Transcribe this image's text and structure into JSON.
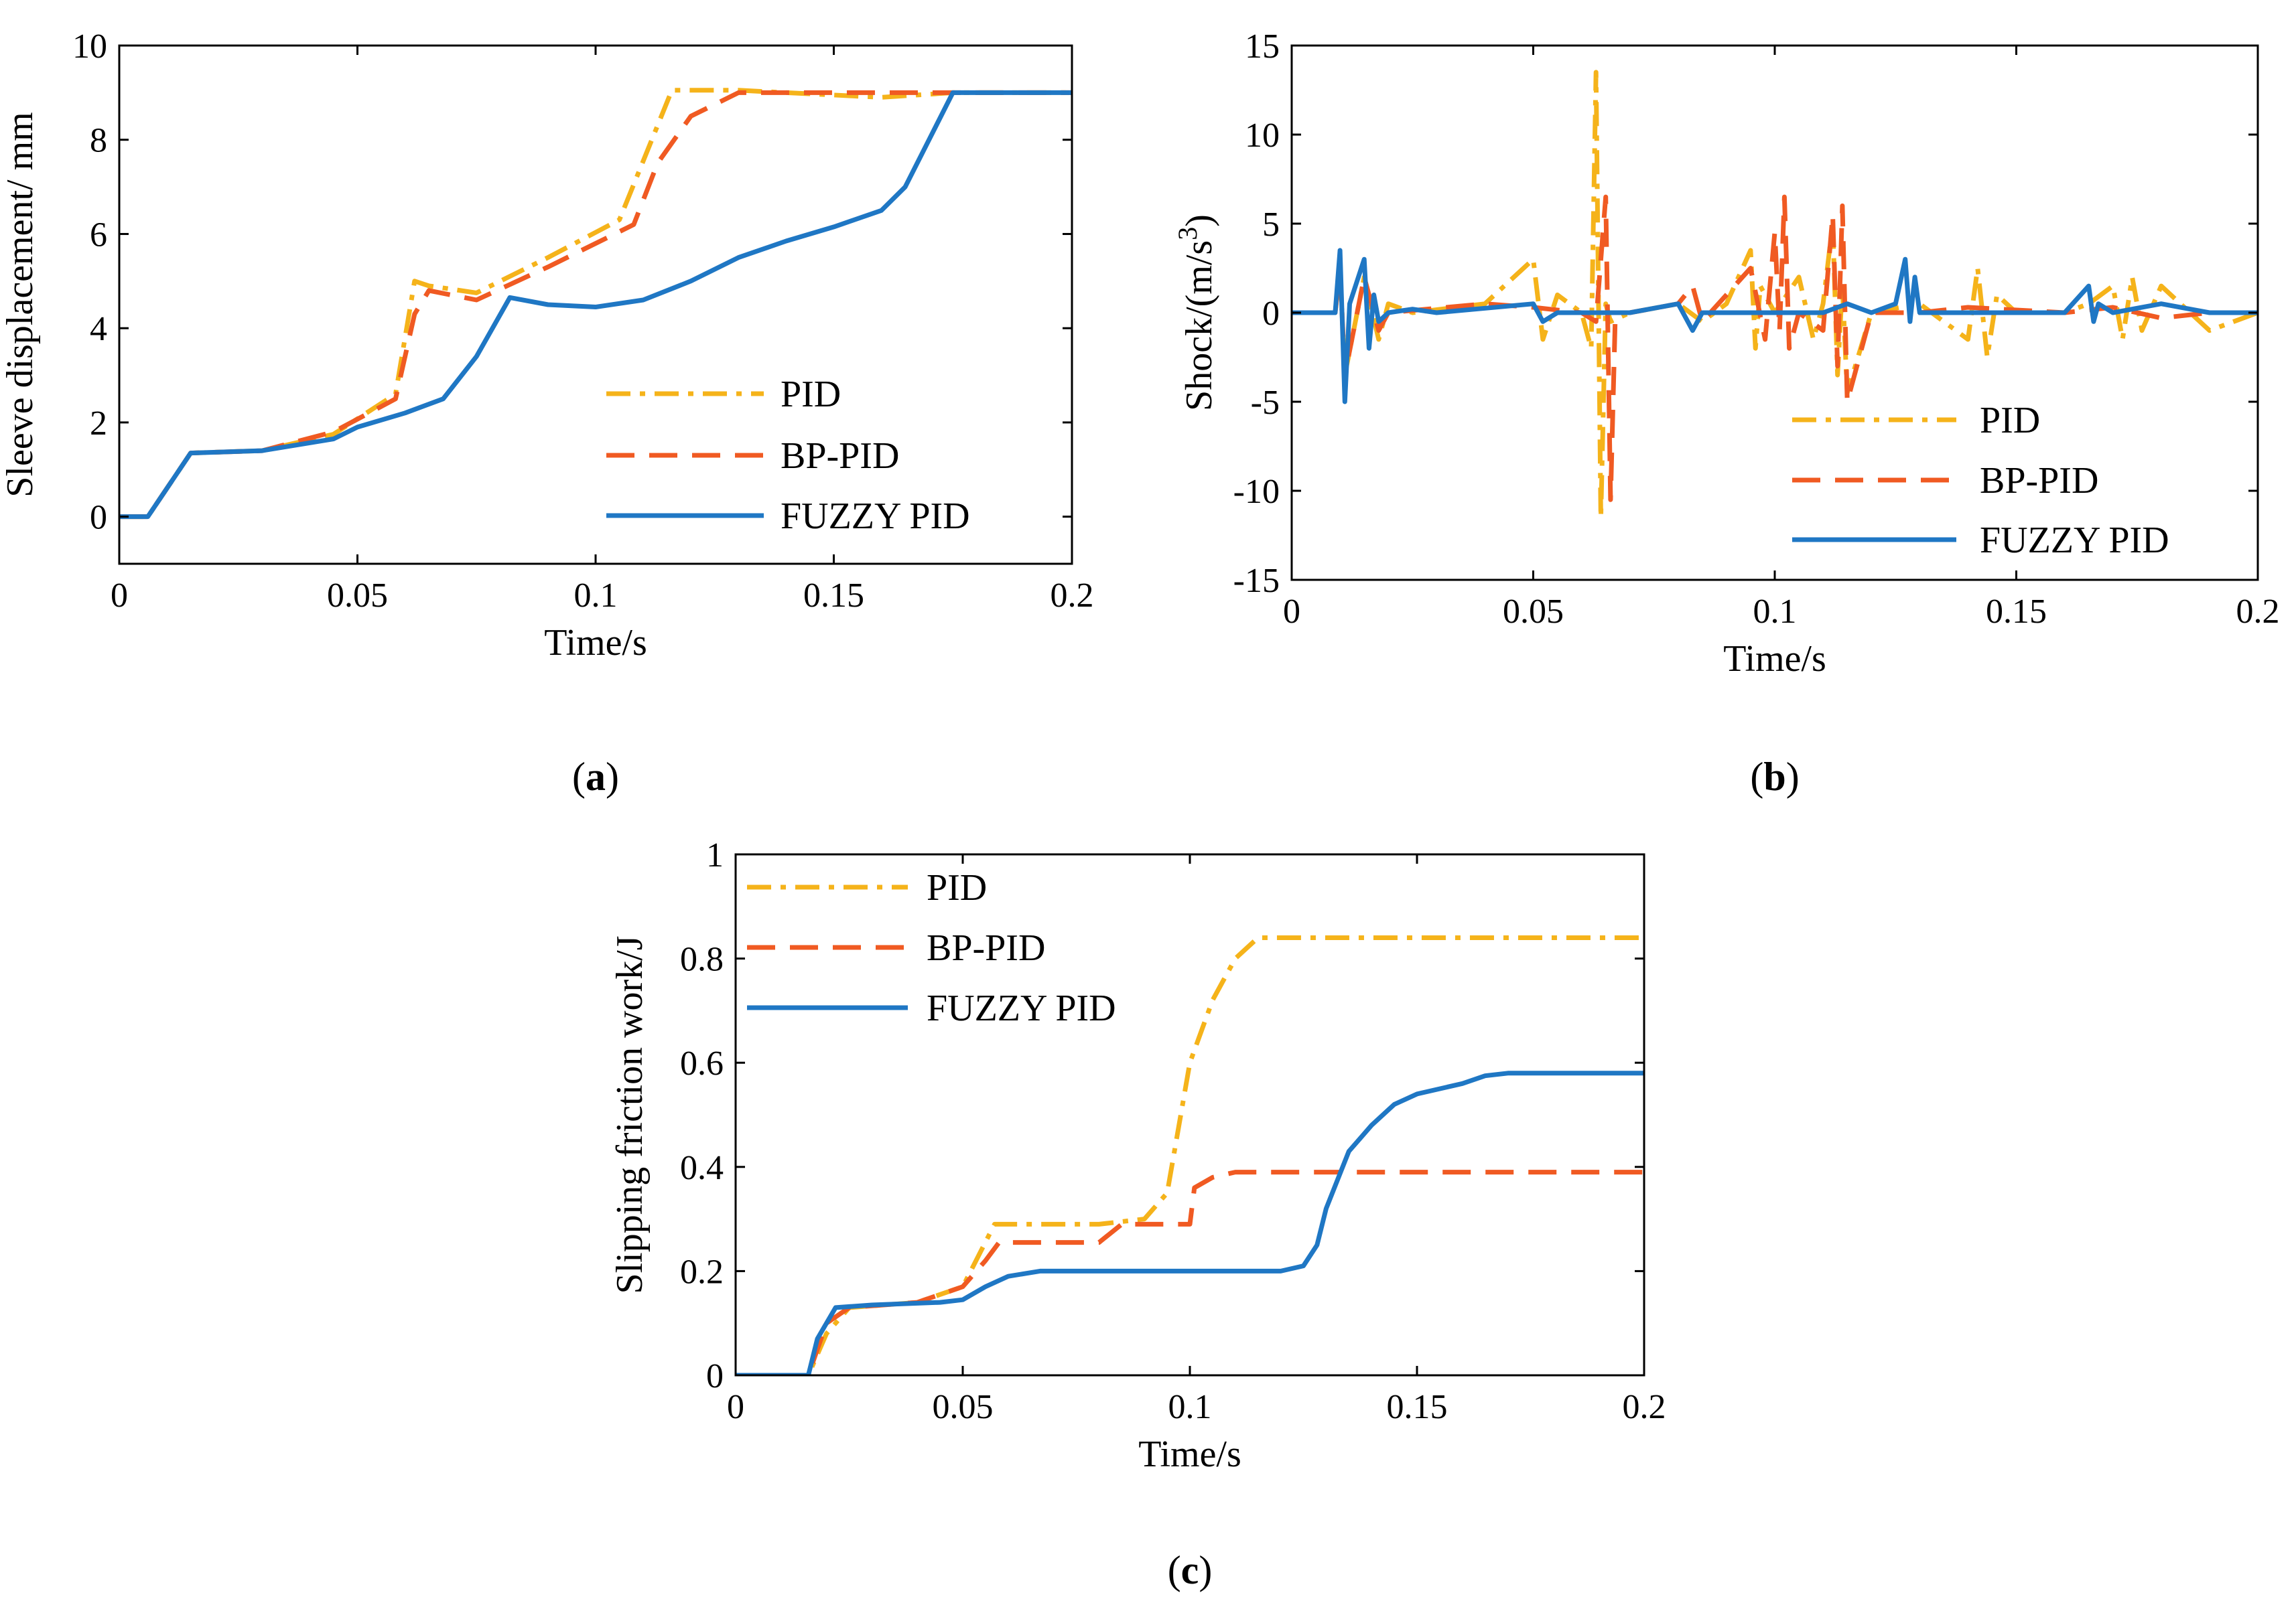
{
  "colors": {
    "PID": "#f5b31a",
    "BP-PID": "#f05a22",
    "FUZZY PID": "#1f77c4"
  },
  "chart_data": [
    {
      "type": "line",
      "panel_label": "a",
      "title": "",
      "xlabel": "Time/s",
      "ylabel": "Sleeve displacement/ mm",
      "xlim": [
        0,
        0.2
      ],
      "ylim": [
        -1,
        10
      ],
      "xticks": [
        0,
        0.05,
        0.1,
        0.15,
        0.2
      ],
      "yticks": [
        0,
        2,
        4,
        6,
        8,
        10
      ],
      "legend_position": "bottom-right",
      "series": [
        {
          "name": "PID",
          "style": "dashdot",
          "color": "#f5b31a",
          "x": [
            0,
            0.006,
            0.015,
            0.03,
            0.045,
            0.058,
            0.062,
            0.065,
            0.075,
            0.09,
            0.105,
            0.111,
            0.116,
            0.13,
            0.14,
            0.16,
            0.175,
            0.2
          ],
          "y": [
            0,
            0,
            1.35,
            1.4,
            1.75,
            2.6,
            5.0,
            4.9,
            4.75,
            5.5,
            6.3,
            7.8,
            9.05,
            9.05,
            9.0,
            8.9,
            9.0,
            9.0
          ]
        },
        {
          "name": "BP-PID",
          "style": "dashed",
          "color": "#f05a22",
          "x": [
            0,
            0.006,
            0.015,
            0.03,
            0.045,
            0.058,
            0.062,
            0.065,
            0.075,
            0.09,
            0.108,
            0.113,
            0.12,
            0.13,
            0.15,
            0.175,
            0.2
          ],
          "y": [
            0,
            0,
            1.35,
            1.4,
            1.8,
            2.5,
            4.3,
            4.8,
            4.6,
            5.3,
            6.2,
            7.5,
            8.5,
            9.0,
            9.0,
            9.0,
            9.0
          ]
        },
        {
          "name": "FUZZY PID",
          "style": "solid",
          "color": "#1f77c4",
          "x": [
            0,
            0.006,
            0.015,
            0.03,
            0.045,
            0.05,
            0.06,
            0.068,
            0.075,
            0.082,
            0.09,
            0.1,
            0.11,
            0.12,
            0.13,
            0.14,
            0.15,
            0.16,
            0.165,
            0.17,
            0.175,
            0.2
          ],
          "y": [
            0,
            0,
            1.35,
            1.4,
            1.65,
            1.9,
            2.2,
            2.5,
            3.4,
            4.65,
            4.5,
            4.45,
            4.6,
            5.0,
            5.5,
            5.85,
            6.15,
            6.5,
            7.0,
            8.0,
            9.0,
            9.0
          ]
        }
      ]
    },
    {
      "type": "line",
      "panel_label": "b",
      "title": "",
      "xlabel": "Time/s",
      "ylabel_main": "Shock/(m/s",
      "ylabel_sup": "3",
      "ylabel_end": ")",
      "xlim": [
        0,
        0.2
      ],
      "ylim": [
        -15,
        15
      ],
      "xticks": [
        0,
        0.05,
        0.1,
        0.15,
        0.2
      ],
      "yticks": [
        -15,
        -10,
        -5,
        0,
        5,
        10,
        15
      ],
      "legend_position": "bottom-right",
      "series": [
        {
          "name": "PID",
          "style": "dashdot",
          "color": "#f5b31a",
          "x": [
            0,
            0.009,
            0.01,
            0.011,
            0.015,
            0.018,
            0.02,
            0.025,
            0.04,
            0.05,
            0.052,
            0.055,
            0.06,
            0.062,
            0.063,
            0.064,
            0.065,
            0.066,
            0.07,
            0.08,
            0.085,
            0.09,
            0.095,
            0.096,
            0.097,
            0.1,
            0.105,
            0.108,
            0.11,
            0.112,
            0.113,
            0.114,
            0.115,
            0.12,
            0.13,
            0.14,
            0.142,
            0.144,
            0.146,
            0.15,
            0.16,
            0.165,
            0.17,
            0.172,
            0.174,
            0.176,
            0.18,
            0.19,
            0.2
          ],
          "y": [
            0,
            0,
            2.5,
            -3.5,
            2.0,
            -1.5,
            0.5,
            0,
            0.5,
            3.0,
            -1.5,
            1.0,
            0,
            -2.0,
            13.5,
            -11.5,
            0.5,
            -0.5,
            0,
            0.5,
            -0.5,
            0.5,
            3.5,
            -2.0,
            1.5,
            0,
            2.0,
            -1.5,
            0.5,
            5.0,
            -3.5,
            1.5,
            -4.5,
            0,
            0.5,
            -1.5,
            2.5,
            -2.5,
            1.0,
            0,
            0,
            0.5,
            1.5,
            -1.5,
            2.0,
            -1.0,
            1.5,
            -1.0,
            0
          ]
        },
        {
          "name": "BP-PID",
          "style": "dashed",
          "color": "#f05a22",
          "x": [
            0,
            0.009,
            0.01,
            0.011,
            0.015,
            0.018,
            0.02,
            0.04,
            0.05,
            0.06,
            0.063,
            0.065,
            0.066,
            0.067,
            0.07,
            0.08,
            0.083,
            0.085,
            0.095,
            0.098,
            0.1,
            0.101,
            0.102,
            0.103,
            0.105,
            0.11,
            0.112,
            0.113,
            0.114,
            0.115,
            0.12,
            0.13,
            0.14,
            0.16,
            0.17,
            0.18,
            0.19,
            0.2
          ],
          "y": [
            0,
            0,
            2.5,
            -3.5,
            2.0,
            -1.0,
            0,
            0.5,
            0.3,
            0,
            -0.5,
            6.5,
            -10.5,
            0,
            0,
            0.5,
            1.5,
            -0.5,
            2.5,
            -1.5,
            4.5,
            -1.0,
            6.5,
            -2.0,
            0,
            -1.0,
            5.5,
            -3.0,
            6.0,
            -5.0,
            0,
            0,
            0.3,
            0,
            0.3,
            -0.3,
            0,
            0
          ]
        },
        {
          "name": "FUZZY PID",
          "style": "solid",
          "color": "#1f77c4",
          "x": [
            0,
            0.009,
            0.01,
            0.011,
            0.012,
            0.015,
            0.016,
            0.017,
            0.018,
            0.02,
            0.025,
            0.03,
            0.05,
            0.052,
            0.055,
            0.06,
            0.07,
            0.08,
            0.083,
            0.085,
            0.1,
            0.11,
            0.115,
            0.12,
            0.125,
            0.127,
            0.128,
            0.129,
            0.13,
            0.14,
            0.16,
            0.165,
            0.166,
            0.167,
            0.17,
            0.18,
            0.19,
            0.2
          ],
          "y": [
            0,
            0,
            3.5,
            -5.0,
            0.5,
            3.0,
            -2.0,
            1.0,
            -0.5,
            0,
            0.2,
            0,
            0.5,
            -0.5,
            0,
            0,
            0,
            0.5,
            -1.0,
            0,
            0,
            0,
            0.5,
            0,
            0.5,
            3.0,
            -0.5,
            2.0,
            0,
            0,
            0,
            1.5,
            -0.5,
            0.5,
            0,
            0.5,
            0,
            0
          ]
        }
      ]
    },
    {
      "type": "line",
      "panel_label": "c",
      "title": "",
      "xlabel": "Time/s",
      "ylabel": "Slipping friction work/J",
      "xlim": [
        0,
        0.2
      ],
      "ylim": [
        0,
        1
      ],
      "xticks": [
        0,
        0.05,
        0.1,
        0.15,
        0.2
      ],
      "yticks": [
        0,
        0.2,
        0.4,
        0.6,
        0.8,
        1
      ],
      "legend_position": "top-left",
      "series": [
        {
          "name": "PID",
          "style": "dashdot",
          "color": "#f5b31a",
          "x": [
            0,
            0.016,
            0.02,
            0.025,
            0.04,
            0.05,
            0.057,
            0.06,
            0.08,
            0.09,
            0.095,
            0.1,
            0.105,
            0.11,
            0.115,
            0.2
          ],
          "y": [
            0,
            0,
            0.08,
            0.13,
            0.14,
            0.17,
            0.29,
            0.29,
            0.29,
            0.3,
            0.35,
            0.6,
            0.72,
            0.8,
            0.84,
            0.84
          ]
        },
        {
          "name": "BP-PID",
          "style": "dashed",
          "color": "#f05a22",
          "x": [
            0,
            0.016,
            0.02,
            0.025,
            0.04,
            0.05,
            0.055,
            0.058,
            0.08,
            0.085,
            0.095,
            0.1,
            0.101,
            0.105,
            0.11,
            0.2
          ],
          "y": [
            0,
            0,
            0.1,
            0.13,
            0.14,
            0.17,
            0.22,
            0.255,
            0.255,
            0.29,
            0.29,
            0.29,
            0.36,
            0.38,
            0.39,
            0.39
          ]
        },
        {
          "name": "FUZZY PID",
          "style": "solid",
          "color": "#1f77c4",
          "x": [
            0,
            0.016,
            0.018,
            0.022,
            0.03,
            0.045,
            0.05,
            0.055,
            0.06,
            0.067,
            0.08,
            0.1,
            0.115,
            0.12,
            0.125,
            0.128,
            0.13,
            0.135,
            0.14,
            0.145,
            0.15,
            0.16,
            0.165,
            0.17,
            0.2
          ],
          "y": [
            0,
            0,
            0.07,
            0.13,
            0.135,
            0.14,
            0.145,
            0.17,
            0.19,
            0.2,
            0.2,
            0.2,
            0.2,
            0.2,
            0.21,
            0.25,
            0.32,
            0.43,
            0.48,
            0.52,
            0.54,
            0.56,
            0.575,
            0.58,
            0.58
          ]
        }
      ]
    }
  ]
}
